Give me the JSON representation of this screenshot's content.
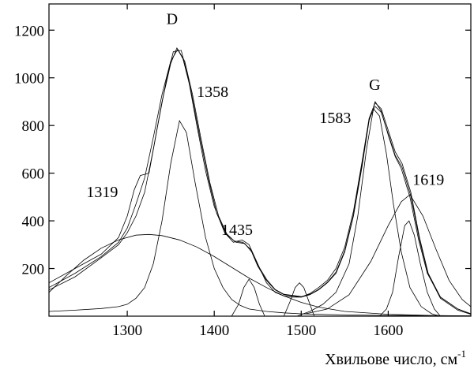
{
  "chart_data": {
    "type": "line",
    "title": "",
    "xlabel": "Хвильове число, см",
    "xlabel_sup": "-1",
    "ylabel": "",
    "xlim": [
      1210,
      1695
    ],
    "ylim": [
      0,
      1310
    ],
    "x_ticks": [
      1300,
      1400,
      1500,
      1600
    ],
    "y_ticks": [
      200,
      400,
      600,
      800,
      1000,
      1200
    ],
    "grid": false,
    "series": [
      {
        "points": [
          [
            1210,
            120
          ],
          [
            1240,
            180
          ],
          [
            1270,
            250
          ],
          [
            1290,
            310
          ],
          [
            1300,
            370
          ],
          [
            1310,
            470
          ],
          [
            1320,
            580
          ],
          [
            1330,
            750
          ],
          [
            1340,
            930
          ],
          [
            1350,
            1070
          ],
          [
            1358,
            1120
          ],
          [
            1366,
            1070
          ],
          [
            1375,
            930
          ],
          [
            1385,
            740
          ],
          [
            1395,
            560
          ],
          [
            1405,
            420
          ],
          [
            1415,
            340
          ],
          [
            1425,
            310
          ],
          [
            1435,
            305
          ],
          [
            1443,
            270
          ],
          [
            1450,
            210
          ],
          [
            1460,
            150
          ],
          [
            1470,
            110
          ],
          [
            1480,
            90
          ],
          [
            1490,
            85
          ],
          [
            1500,
            80
          ],
          [
            1510,
            90
          ],
          [
            1520,
            110
          ],
          [
            1530,
            140
          ],
          [
            1540,
            180
          ],
          [
            1550,
            270
          ],
          [
            1560,
            420
          ],
          [
            1570,
            630
          ],
          [
            1578,
            820
          ],
          [
            1585,
            900
          ],
          [
            1592,
            860
          ],
          [
            1600,
            760
          ],
          [
            1608,
            670
          ],
          [
            1615,
            620
          ],
          [
            1625,
            500
          ],
          [
            1635,
            320
          ],
          [
            1645,
            180
          ],
          [
            1660,
            80
          ],
          [
            1680,
            30
          ],
          [
            1695,
            10
          ]
        ]
      },
      {
        "points": [
          [
            1210,
            140
          ],
          [
            1240,
            200
          ],
          [
            1270,
            260
          ],
          [
            1290,
            330
          ],
          [
            1300,
            420
          ],
          [
            1308,
            530
          ],
          [
            1315,
            590
          ],
          [
            1325,
            600
          ],
          [
            1335,
            800
          ],
          [
            1345,
            990
          ],
          [
            1353,
            1110
          ],
          [
            1362,
            1115
          ],
          [
            1370,
            1000
          ],
          [
            1380,
            800
          ],
          [
            1390,
            610
          ],
          [
            1400,
            460
          ],
          [
            1412,
            350
          ],
          [
            1422,
            310
          ],
          [
            1432,
            320
          ],
          [
            1440,
            300
          ],
          [
            1450,
            220
          ],
          [
            1460,
            140
          ],
          [
            1470,
            100
          ],
          [
            1480,
            85
          ],
          [
            1490,
            80
          ],
          [
            1500,
            80
          ],
          [
            1510,
            95
          ],
          [
            1520,
            120
          ],
          [
            1530,
            150
          ],
          [
            1540,
            200
          ],
          [
            1550,
            290
          ],
          [
            1560,
            440
          ],
          [
            1570,
            650
          ],
          [
            1578,
            830
          ],
          [
            1585,
            895
          ],
          [
            1592,
            870
          ],
          [
            1600,
            780
          ],
          [
            1608,
            690
          ],
          [
            1616,
            640
          ],
          [
            1626,
            520
          ],
          [
            1636,
            330
          ],
          [
            1646,
            180
          ],
          [
            1660,
            80
          ],
          [
            1680,
            30
          ],
          [
            1695,
            10
          ]
        ]
      },
      {
        "points": [
          [
            1210,
            110
          ],
          [
            1240,
            165
          ],
          [
            1270,
            245
          ],
          [
            1290,
            300
          ],
          [
            1300,
            350
          ],
          [
            1310,
            420
          ],
          [
            1320,
            520
          ],
          [
            1330,
            700
          ],
          [
            1340,
            900
          ],
          [
            1350,
            1060
          ],
          [
            1357,
            1125
          ],
          [
            1364,
            1080
          ],
          [
            1373,
            950
          ],
          [
            1383,
            760
          ],
          [
            1393,
            580
          ],
          [
            1403,
            430
          ],
          [
            1413,
            350
          ],
          [
            1423,
            315
          ],
          [
            1433,
            310
          ],
          [
            1442,
            280
          ],
          [
            1450,
            215
          ],
          [
            1460,
            155
          ],
          [
            1470,
            112
          ],
          [
            1480,
            92
          ],
          [
            1490,
            87
          ],
          [
            1500,
            82
          ],
          [
            1510,
            92
          ],
          [
            1520,
            112
          ],
          [
            1530,
            142
          ],
          [
            1540,
            185
          ],
          [
            1550,
            275
          ],
          [
            1560,
            425
          ],
          [
            1570,
            640
          ],
          [
            1578,
            825
          ],
          [
            1585,
            880
          ],
          [
            1592,
            855
          ],
          [
            1600,
            765
          ],
          [
            1608,
            675
          ],
          [
            1616,
            625
          ],
          [
            1626,
            505
          ],
          [
            1636,
            320
          ],
          [
            1646,
            175
          ],
          [
            1660,
            75
          ],
          [
            1680,
            25
          ],
          [
            1695,
            8
          ]
        ]
      },
      {
        "points": [
          [
            1210,
            20
          ],
          [
            1240,
            25
          ],
          [
            1270,
            32
          ],
          [
            1290,
            40
          ],
          [
            1300,
            50
          ],
          [
            1310,
            75
          ],
          [
            1320,
            120
          ],
          [
            1330,
            220
          ],
          [
            1340,
            400
          ],
          [
            1350,
            640
          ],
          [
            1360,
            820
          ],
          [
            1368,
            770
          ],
          [
            1378,
            560
          ],
          [
            1390,
            330
          ],
          [
            1400,
            200
          ],
          [
            1410,
            120
          ],
          [
            1420,
            70
          ],
          [
            1430,
            45
          ],
          [
            1440,
            30
          ],
          [
            1460,
            20
          ],
          [
            1480,
            14
          ],
          [
            1500,
            10
          ],
          [
            1530,
            7
          ],
          [
            1560,
            5
          ],
          [
            1600,
            3
          ],
          [
            1650,
            2
          ],
          [
            1695,
            1
          ]
        ]
      },
      {
        "points": [
          [
            1210,
            100
          ],
          [
            1230,
            170
          ],
          [
            1250,
            235
          ],
          [
            1270,
            285
          ],
          [
            1290,
            320
          ],
          [
            1310,
            340
          ],
          [
            1325,
            343
          ],
          [
            1340,
            338
          ],
          [
            1360,
            320
          ],
          [
            1380,
            290
          ],
          [
            1400,
            250
          ],
          [
            1420,
            205
          ],
          [
            1440,
            160
          ],
          [
            1460,
            120
          ],
          [
            1480,
            85
          ],
          [
            1500,
            58
          ],
          [
            1520,
            38
          ],
          [
            1550,
            20
          ],
          [
            1600,
            8
          ],
          [
            1650,
            3
          ],
          [
            1695,
            1
          ]
        ]
      },
      {
        "points": [
          [
            1420,
            0
          ],
          [
            1428,
            50
          ],
          [
            1434,
            120
          ],
          [
            1440,
            155
          ],
          [
            1446,
            120
          ],
          [
            1452,
            50
          ],
          [
            1458,
            0
          ]
        ]
      },
      {
        "points": [
          [
            1480,
            0
          ],
          [
            1487,
            60
          ],
          [
            1493,
            120
          ],
          [
            1498,
            140
          ],
          [
            1503,
            120
          ],
          [
            1509,
            60
          ],
          [
            1515,
            0
          ]
        ]
      },
      {
        "points": [
          [
            1495,
            0
          ],
          [
            1510,
            20
          ],
          [
            1525,
            50
          ],
          [
            1540,
            100
          ],
          [
            1555,
            220
          ],
          [
            1565,
            420
          ],
          [
            1575,
            700
          ],
          [
            1583,
            870
          ],
          [
            1590,
            840
          ],
          [
            1598,
            680
          ],
          [
            1606,
            470
          ],
          [
            1615,
            270
          ],
          [
            1625,
            120
          ],
          [
            1638,
            40
          ],
          [
            1650,
            10
          ],
          [
            1660,
            0
          ]
        ]
      },
      {
        "points": [
          [
            1590,
            0
          ],
          [
            1598,
            30
          ],
          [
            1605,
            100
          ],
          [
            1612,
            250
          ],
          [
            1619,
            380
          ],
          [
            1624,
            400
          ],
          [
            1630,
            340
          ],
          [
            1637,
            220
          ],
          [
            1645,
            100
          ],
          [
            1653,
            30
          ],
          [
            1660,
            0
          ]
        ]
      },
      {
        "points": [
          [
            1505,
            10
          ],
          [
            1530,
            30
          ],
          [
            1555,
            90
          ],
          [
            1580,
            230
          ],
          [
            1600,
            380
          ],
          [
            1615,
            480
          ],
          [
            1625,
            510
          ],
          [
            1640,
            420
          ],
          [
            1655,
            280
          ],
          [
            1670,
            150
          ],
          [
            1685,
            70
          ],
          [
            1695,
            40
          ]
        ]
      }
    ],
    "annotations": [
      {
        "text": "D",
        "x": 1345,
        "y": 1225
      },
      {
        "text": "1358",
        "x": 1380,
        "y": 920
      },
      {
        "text": "1319",
        "x": 1253,
        "y": 500
      },
      {
        "text": "1435",
        "x": 1408,
        "y": 340
      },
      {
        "text": "G",
        "x": 1578,
        "y": 950
      },
      {
        "text": "1583",
        "x": 1521,
        "y": 810
      },
      {
        "text": "1619",
        "x": 1628,
        "y": 550
      }
    ]
  }
}
